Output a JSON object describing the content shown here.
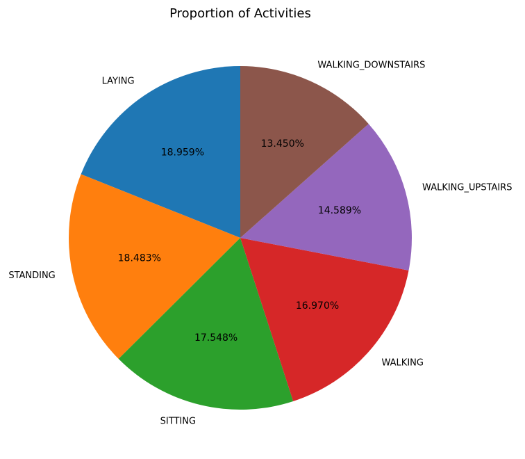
{
  "chart_data": {
    "type": "pie",
    "title": "Proportion of Activities",
    "start_angle_deg": 90,
    "direction": "counterclockwise",
    "slices": [
      {
        "label": "LAYING",
        "value": 18.959,
        "pct_label": "18.959%",
        "color": "#1f77b4"
      },
      {
        "label": "STANDING",
        "value": 18.483,
        "pct_label": "18.483%",
        "color": "#ff7f0e"
      },
      {
        "label": "SITTING",
        "value": 17.548,
        "pct_label": "17.548%",
        "color": "#2ca02c"
      },
      {
        "label": "WALKING",
        "value": 16.97,
        "pct_label": "16.970%",
        "color": "#d62728"
      },
      {
        "label": "WALKING_UPSTAIRS",
        "value": 14.589,
        "pct_label": "14.589%",
        "color": "#9467bd"
      },
      {
        "label": "WALKING_DOWNSTAIRS",
        "value": 13.45,
        "pct_label": "13.450%",
        "color": "#8c564b"
      }
    ]
  }
}
